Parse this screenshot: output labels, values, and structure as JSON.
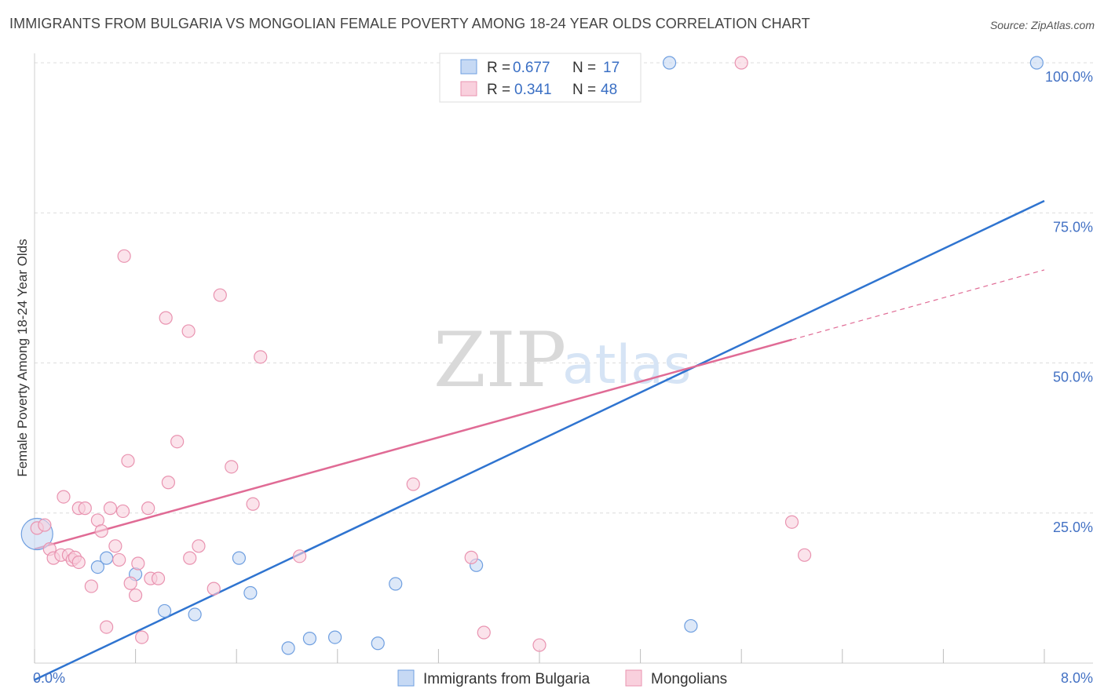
{
  "header": {
    "title": "IMMIGRANTS FROM BULGARIA VS MONGOLIAN FEMALE POVERTY AMONG 18-24 YEAR OLDS CORRELATION CHART",
    "source": "Source: ZipAtlas.com"
  },
  "watermark": {
    "zip": "ZIP",
    "atlas": "atlas"
  },
  "chart_data": {
    "type": "scatter",
    "title": "IMMIGRANTS FROM BULGARIA VS MONGOLIAN FEMALE POVERTY AMONG 18-24 YEAR OLDS CORRELATION CHART",
    "xlabel": "",
    "ylabel": "Female Poverty Among 18-24 Year Olds",
    "xlim": [
      0,
      8
    ],
    "ylim": [
      0,
      100
    ],
    "x_ticks": [
      "0.0%",
      "8.0%"
    ],
    "y_ticks": [
      {
        "value": 25,
        "label": "25.0%"
      },
      {
        "value": 50,
        "label": "50.0%"
      },
      {
        "value": 75,
        "label": "75.0%"
      },
      {
        "value": 100,
        "label": "100.0%"
      }
    ],
    "grid": true,
    "legend_position": "top-center",
    "stats": [
      {
        "r_label": "R = ",
        "r": "0.677",
        "n_label": "N = ",
        "n": "17"
      },
      {
        "r_label": "R = ",
        "r": "0.341",
        "n_label": "N = ",
        "n": "48"
      }
    ],
    "series": [
      {
        "name": "Immigrants from Bulgaria",
        "color": "#6f9fe0",
        "fill": "#c6d9f4",
        "line_color": "#2f74d0",
        "trend": {
          "x0": 0.0,
          "y0": -2.8,
          "x1": 8.0,
          "y1": 77.0,
          "dashed_from": null
        },
        "points": [
          [
            0.02,
            21.5
          ],
          [
            0.5,
            16.0
          ],
          [
            0.57,
            17.5
          ],
          [
            0.8,
            14.8
          ],
          [
            1.03,
            8.7
          ],
          [
            1.27,
            8.1
          ],
          [
            1.62,
            17.5
          ],
          [
            1.71,
            11.7
          ],
          [
            2.01,
            2.5
          ],
          [
            2.18,
            4.1
          ],
          [
            2.38,
            4.3
          ],
          [
            2.72,
            3.3
          ],
          [
            2.86,
            13.2
          ],
          [
            3.5,
            16.3
          ],
          [
            5.03,
            100.0
          ],
          [
            5.2,
            6.2
          ],
          [
            7.94,
            100.0
          ]
        ]
      },
      {
        "name": "Mongolians",
        "color": "#e993b0",
        "fill": "#f9d0dd",
        "line_color": "#e06b95",
        "trend": {
          "x0": 0.0,
          "y0": 19.0,
          "x1": 8.0,
          "y1": 65.5,
          "dashed_from": 6.0
        },
        "points": [
          [
            0.02,
            22.5
          ],
          [
            0.08,
            23.0
          ],
          [
            0.12,
            19.0
          ],
          [
            0.15,
            17.5
          ],
          [
            0.21,
            18.0
          ],
          [
            0.23,
            27.7
          ],
          [
            0.27,
            18.0
          ],
          [
            0.3,
            17.2
          ],
          [
            0.32,
            17.6
          ],
          [
            0.35,
            16.8
          ],
          [
            0.35,
            25.8
          ],
          [
            0.4,
            25.8
          ],
          [
            0.45,
            12.8
          ],
          [
            0.5,
            23.8
          ],
          [
            0.53,
            22.0
          ],
          [
            0.57,
            6.0
          ],
          [
            0.6,
            25.8
          ],
          [
            0.64,
            19.5
          ],
          [
            0.67,
            17.2
          ],
          [
            0.7,
            25.3
          ],
          [
            0.71,
            67.8
          ],
          [
            0.74,
            33.7
          ],
          [
            0.76,
            13.3
          ],
          [
            0.8,
            11.3
          ],
          [
            0.82,
            16.6
          ],
          [
            0.85,
            4.3
          ],
          [
            0.9,
            25.8
          ],
          [
            0.92,
            14.1
          ],
          [
            0.98,
            14.1
          ],
          [
            1.04,
            57.5
          ],
          [
            1.06,
            30.1
          ],
          [
            1.13,
            36.9
          ],
          [
            1.22,
            55.3
          ],
          [
            1.23,
            17.5
          ],
          [
            1.3,
            19.5
          ],
          [
            1.42,
            12.4
          ],
          [
            1.47,
            61.3
          ],
          [
            1.56,
            32.7
          ],
          [
            1.73,
            26.5
          ],
          [
            1.79,
            51.0
          ],
          [
            2.1,
            17.8
          ],
          [
            3.0,
            29.8
          ],
          [
            3.46,
            17.6
          ],
          [
            3.56,
            5.1
          ],
          [
            4.0,
            3.0
          ],
          [
            5.6,
            100.0
          ],
          [
            6.0,
            23.5
          ],
          [
            6.1,
            18.0
          ]
        ]
      }
    ]
  }
}
